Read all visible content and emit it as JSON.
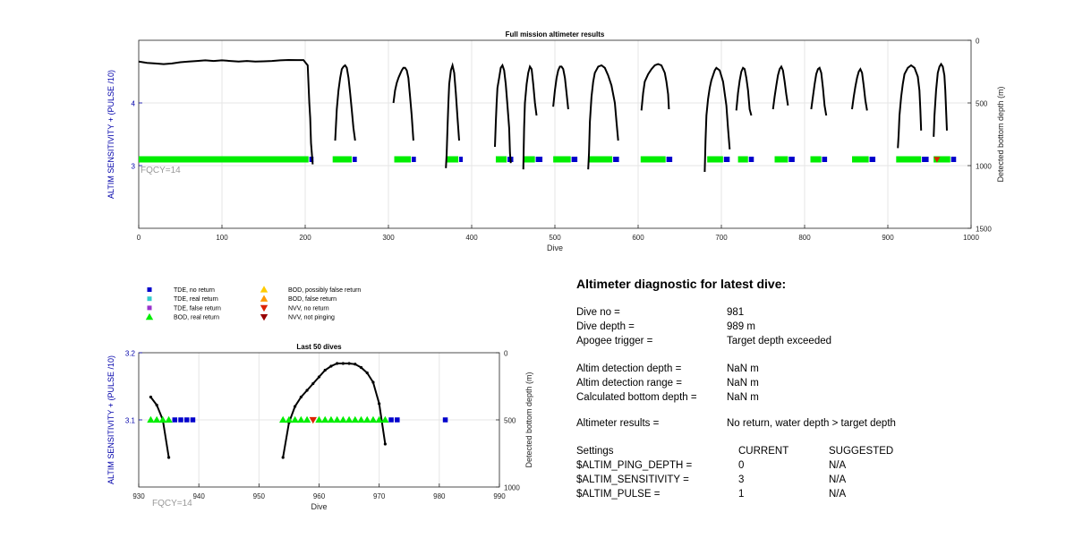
{
  "colors": {
    "tde_no_return": "#0000cc",
    "tde_real_return": "#33cccc",
    "tde_false_return": "#9933cc",
    "bod_real_return": "#00ee00",
    "bod_possibly_false": "#ffcc00",
    "bod_false_return": "#ff9900",
    "nvv_no_return": "#dd2200",
    "nvv_not_pinging": "#990000",
    "depth_line": "#000000",
    "left_axis": "#0000aa",
    "fqcy_text": "#999999"
  },
  "chart_data": [
    {
      "type": "scatter",
      "title": "Full mission altimeter results",
      "xlabel": "Dive",
      "ylabel_left": "ALTIM SENSITIVITY + (PULSE /10)",
      "ylabel_right": "Detected bottom depth (m)",
      "annotation": "FQCY=14",
      "xlim": [
        0,
        1000
      ],
      "xticks": [
        "0",
        "100",
        "200",
        "300",
        "400",
        "500",
        "600",
        "700",
        "800",
        "900",
        "1000"
      ],
      "left_ylim": [
        2.0,
        5.0
      ],
      "left_yticks": [
        "3",
        "4"
      ],
      "right_ylim": [
        0,
        1500
      ],
      "right_yticks": [
        "0",
        "500",
        "1000",
        "1500"
      ],
      "grid": true,
      "markers_value": 3.1,
      "depth_segments": [
        [
          [
            0,
            170
          ],
          [
            10,
            180
          ],
          [
            20,
            185
          ],
          [
            30,
            190
          ],
          [
            40,
            185
          ],
          [
            50,
            175
          ],
          [
            60,
            170
          ],
          [
            70,
            165
          ],
          [
            80,
            160
          ],
          [
            90,
            165
          ],
          [
            100,
            160
          ],
          [
            110,
            165
          ],
          [
            120,
            170
          ],
          [
            130,
            165
          ],
          [
            140,
            170
          ],
          [
            150,
            168
          ],
          [
            160,
            165
          ],
          [
            170,
            160
          ],
          [
            180,
            157
          ],
          [
            190,
            158
          ],
          [
            198,
            158
          ],
          [
            203,
            200
          ],
          [
            205,
            500
          ],
          [
            206,
            620
          ],
          [
            207,
            820
          ],
          [
            208,
            900
          ],
          [
            209,
            990
          ]
        ],
        [
          [
            236,
            800
          ],
          [
            238,
            550
          ],
          [
            240,
            400
          ],
          [
            242,
            300
          ],
          [
            244,
            230
          ],
          [
            246,
            210
          ],
          [
            248,
            200
          ],
          [
            250,
            220
          ],
          [
            252,
            300
          ],
          [
            254,
            420
          ],
          [
            256,
            560
          ],
          [
            258,
            700
          ],
          [
            260,
            800
          ]
        ],
        [
          [
            306,
            500
          ],
          [
            308,
            400
          ],
          [
            310,
            340
          ],
          [
            312,
            300
          ],
          [
            314,
            270
          ],
          [
            316,
            240
          ],
          [
            318,
            220
          ],
          [
            320,
            220
          ],
          [
            322,
            240
          ],
          [
            324,
            300
          ],
          [
            326,
            450
          ],
          [
            328,
            600
          ],
          [
            330,
            800
          ]
        ],
        [
          [
            369,
            1020
          ],
          [
            370,
            900
          ],
          [
            371,
            700
          ],
          [
            372,
            500
          ],
          [
            373,
            350
          ],
          [
            375,
            240
          ],
          [
            377,
            200
          ],
          [
            379,
            260
          ],
          [
            381,
            420
          ],
          [
            383,
            620
          ],
          [
            385,
            800
          ]
        ],
        [
          [
            428,
            850
          ],
          [
            429,
            650
          ],
          [
            430,
            500
          ],
          [
            431,
            380
          ],
          [
            433,
            300
          ],
          [
            435,
            220
          ],
          [
            437,
            200
          ],
          [
            439,
            240
          ],
          [
            441,
            350
          ],
          [
            443,
            520
          ],
          [
            445,
            700
          ],
          [
            446,
            900
          ],
          [
            447,
            980
          ]
        ],
        [
          [
            462,
            1030
          ],
          [
            463,
            700
          ],
          [
            464,
            500
          ],
          [
            466,
            350
          ],
          [
            468,
            260
          ],
          [
            470,
            210
          ],
          [
            472,
            230
          ],
          [
            474,
            350
          ],
          [
            476,
            500
          ],
          [
            478,
            600
          ]
        ],
        [
          [
            498,
            530
          ],
          [
            500,
            400
          ],
          [
            502,
            300
          ],
          [
            504,
            240
          ],
          [
            506,
            210
          ],
          [
            508,
            210
          ],
          [
            510,
            230
          ],
          [
            512,
            300
          ],
          [
            514,
            420
          ],
          [
            516,
            550
          ]
        ],
        [
          [
            540,
            1030
          ],
          [
            541,
            900
          ],
          [
            542,
            650
          ],
          [
            544,
            450
          ],
          [
            546,
            330
          ],
          [
            548,
            260
          ],
          [
            552,
            210
          ],
          [
            556,
            200
          ],
          [
            560,
            220
          ],
          [
            564,
            280
          ],
          [
            568,
            360
          ],
          [
            572,
            500
          ],
          [
            574,
            650
          ],
          [
            576,
            800
          ]
        ],
        [
          [
            604,
            560
          ],
          [
            606,
            420
          ],
          [
            608,
            330
          ],
          [
            612,
            270
          ],
          [
            616,
            230
          ],
          [
            620,
            200
          ],
          [
            624,
            190
          ],
          [
            628,
            200
          ],
          [
            632,
            260
          ],
          [
            634,
            330
          ],
          [
            636,
            430
          ],
          [
            637,
            550
          ]
        ],
        [
          [
            680,
            1050
          ],
          [
            681,
            800
          ],
          [
            682,
            600
          ],
          [
            684,
            470
          ],
          [
            686,
            380
          ],
          [
            688,
            320
          ],
          [
            690,
            280
          ],
          [
            692,
            240
          ],
          [
            694,
            220
          ],
          [
            698,
            240
          ],
          [
            702,
            330
          ],
          [
            706,
            520
          ],
          [
            708,
            700
          ],
          [
            710,
            870
          ]
        ],
        [
          [
            718,
            560
          ],
          [
            720,
            420
          ],
          [
            722,
            320
          ],
          [
            724,
            250
          ],
          [
            726,
            220
          ],
          [
            728,
            230
          ],
          [
            730,
            300
          ],
          [
            732,
            400
          ],
          [
            734,
            550
          ],
          [
            736,
            600
          ]
        ],
        [
          [
            762,
            550
          ],
          [
            764,
            450
          ],
          [
            766,
            360
          ],
          [
            768,
            280
          ],
          [
            770,
            230
          ],
          [
            772,
            210
          ],
          [
            774,
            240
          ],
          [
            776,
            330
          ],
          [
            778,
            430
          ],
          [
            780,
            520
          ]
        ],
        [
          [
            808,
            550
          ],
          [
            810,
            450
          ],
          [
            812,
            350
          ],
          [
            814,
            270
          ],
          [
            816,
            230
          ],
          [
            818,
            220
          ],
          [
            820,
            260
          ],
          [
            822,
            380
          ],
          [
            824,
            520
          ],
          [
            826,
            600
          ]
        ],
        [
          [
            857,
            550
          ],
          [
            859,
            450
          ],
          [
            861,
            370
          ],
          [
            863,
            300
          ],
          [
            865,
            250
          ],
          [
            867,
            230
          ],
          [
            869,
            260
          ],
          [
            871,
            360
          ],
          [
            873,
            480
          ],
          [
            875,
            560
          ]
        ],
        [
          [
            912,
            860
          ],
          [
            913,
            750
          ],
          [
            914,
            600
          ],
          [
            916,
            450
          ],
          [
            918,
            350
          ],
          [
            920,
            270
          ],
          [
            924,
            220
          ],
          [
            928,
            200
          ],
          [
            932,
            220
          ],
          [
            936,
            290
          ],
          [
            938,
            400
          ],
          [
            939,
            550
          ],
          [
            940,
            720
          ]
        ],
        [
          [
            955,
            770
          ],
          [
            956,
            600
          ],
          [
            958,
            400
          ],
          [
            960,
            260
          ],
          [
            962,
            210
          ],
          [
            964,
            190
          ],
          [
            966,
            210
          ],
          [
            968,
            280
          ],
          [
            969,
            400
          ],
          [
            970,
            560
          ],
          [
            971,
            720
          ]
        ]
      ],
      "green_runs": [
        [
          0,
          204
        ],
        [
          233,
          256
        ],
        [
          307,
          327
        ],
        [
          370,
          384
        ],
        [
          429,
          442
        ],
        [
          462,
          476
        ],
        [
          498,
          519
        ],
        [
          541,
          569
        ],
        [
          603,
          633
        ],
        [
          683,
          702
        ],
        [
          720,
          732
        ],
        [
          764,
          780
        ],
        [
          807,
          820
        ],
        [
          857,
          877
        ],
        [
          910,
          940
        ],
        [
          955,
          975
        ]
      ],
      "blue_runs": [
        [
          205,
          210
        ],
        [
          257,
          262
        ],
        [
          328,
          333
        ],
        [
          385,
          388
        ],
        [
          443,
          450
        ],
        [
          477,
          485
        ],
        [
          520,
          527
        ],
        [
          570,
          577
        ],
        [
          634,
          641
        ],
        [
          703,
          710
        ],
        [
          733,
          739
        ],
        [
          781,
          788
        ],
        [
          821,
          827
        ],
        [
          878,
          885
        ],
        [
          941,
          949
        ],
        [
          976,
          982
        ]
      ],
      "red_markers": [
        959
      ]
    },
    {
      "type": "scatter",
      "title": "Last 50 dives",
      "xlabel": "Dive",
      "ylabel_left": "ALTIM SENSITIVITY + (PULSE /10)",
      "ylabel_right": "Detected bottom depth (m)",
      "annotation": "FQCY=14",
      "xlim": [
        930,
        990
      ],
      "xticks": [
        "930",
        "940",
        "950",
        "960",
        "970",
        "980",
        "990"
      ],
      "left_ylim": [
        3.0,
        3.2
      ],
      "left_yticks": [
        "3.1",
        "3.2"
      ],
      "right_ylim": [
        0,
        1000
      ],
      "right_yticks": [
        "0",
        "500",
        "1000"
      ],
      "grid": true,
      "markers_value": 3.1,
      "depth_segments": [
        [
          [
            932,
            330
          ],
          [
            933,
            390
          ],
          [
            934,
            500
          ],
          [
            935,
            780
          ]
        ],
        [
          [
            954,
            780
          ],
          [
            955,
            520
          ],
          [
            956,
            400
          ],
          [
            957,
            330
          ],
          [
            958,
            280
          ],
          [
            959,
            230
          ],
          [
            960,
            180
          ],
          [
            961,
            130
          ],
          [
            962,
            100
          ],
          [
            963,
            80
          ],
          [
            964,
            80
          ],
          [
            965,
            80
          ],
          [
            966,
            85
          ],
          [
            967,
            110
          ],
          [
            968,
            150
          ],
          [
            969,
            220
          ],
          [
            970,
            380
          ],
          [
            971,
            680
          ]
        ]
      ],
      "green_points": [
        932,
        933,
        934,
        935,
        954,
        955,
        956,
        957,
        958,
        960,
        961,
        962,
        963,
        964,
        965,
        966,
        967,
        968,
        969,
        970,
        971
      ],
      "blue_points": [
        936,
        937,
        938,
        939,
        972,
        973,
        981
      ],
      "red_points": [
        959
      ]
    }
  ],
  "legend": {
    "col1": [
      {
        "label": "TDE, no return",
        "marker": "square",
        "color_key": "tde_no_return"
      },
      {
        "label": "TDE, real return",
        "marker": "square",
        "color_key": "tde_real_return"
      },
      {
        "label": "TDE, false return",
        "marker": "square",
        "color_key": "tde_false_return"
      },
      {
        "label": "BOD, real return",
        "marker": "triangle-up",
        "color_key": "bod_real_return"
      }
    ],
    "col2": [
      {
        "label": "BOD, possibly false return",
        "marker": "triangle-up",
        "color_key": "bod_possibly_false"
      },
      {
        "label": "BOD, false return",
        "marker": "triangle-up",
        "color_key": "bod_false_return"
      },
      {
        "label": "NVV, no return",
        "marker": "triangle-down",
        "color_key": "nvv_no_return"
      },
      {
        "label": "NVV, not pinging",
        "marker": "triangle-down",
        "color_key": "nvv_not_pinging"
      }
    ]
  },
  "diagnostic": {
    "title": "Altimeter diagnostic for latest dive:",
    "dive_no_label": "Dive no =",
    "dive_no": "981",
    "dive_depth_label": "Dive depth =",
    "dive_depth": "989 m",
    "apogee_label": "Apogee trigger =",
    "apogee": "Target depth exceeded",
    "altim_det_depth_label": "Altim detection depth =",
    "altim_det_depth": "NaN m",
    "altim_det_range_label": "Altim detection range =",
    "altim_det_range": "NaN m",
    "calc_bottom_label": "Calculated bottom depth =",
    "calc_bottom": "NaN m",
    "results_label": "Altimeter results =",
    "results": "No return, water depth > target depth",
    "settings_label": "Settings",
    "current_label": "CURRENT",
    "suggested_label": "SUGGESTED",
    "ping_depth_label": "$ALTIM_PING_DEPTH =",
    "ping_depth_current": "0",
    "ping_depth_suggested": "N/A",
    "sensitivity_label": "$ALTIM_SENSITIVITY =",
    "sensitivity_current": "3",
    "sensitivity_suggested": "N/A",
    "pulse_label": "$ALTIM_PULSE =",
    "pulse_current": "1",
    "pulse_suggested": "N/A"
  }
}
